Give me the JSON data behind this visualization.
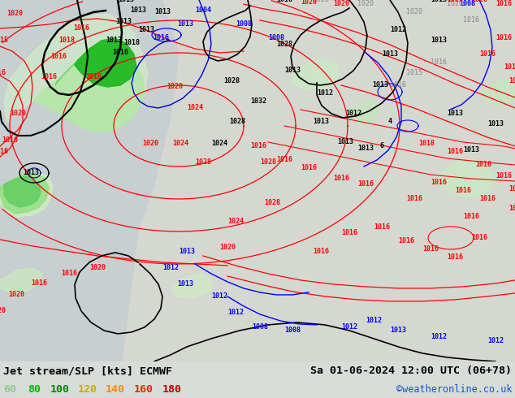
{
  "title_left": "Jet stream/SLP [kts] ECMWF",
  "title_right": "Sa 01-06-2024 12:00 UTC (06+78)",
  "copyright": "©weatheronline.co.uk",
  "legend_values": [
    "60",
    "80",
    "100",
    "120",
    "140",
    "160",
    "180"
  ],
  "legend_colors": [
    "#90c890",
    "#00bb00",
    "#008800",
    "#ccaa00",
    "#ff8800",
    "#ee2200",
    "#bb0000"
  ],
  "fig_width": 6.34,
  "fig_height": 4.9,
  "dpi": 100,
  "map_bg": "#e0e4e0",
  "bottom_bar_color": "#d8dcd8",
  "title_fontsize": 9.5,
  "legend_fontsize": 9.5,
  "copyright_color": "#1155cc"
}
